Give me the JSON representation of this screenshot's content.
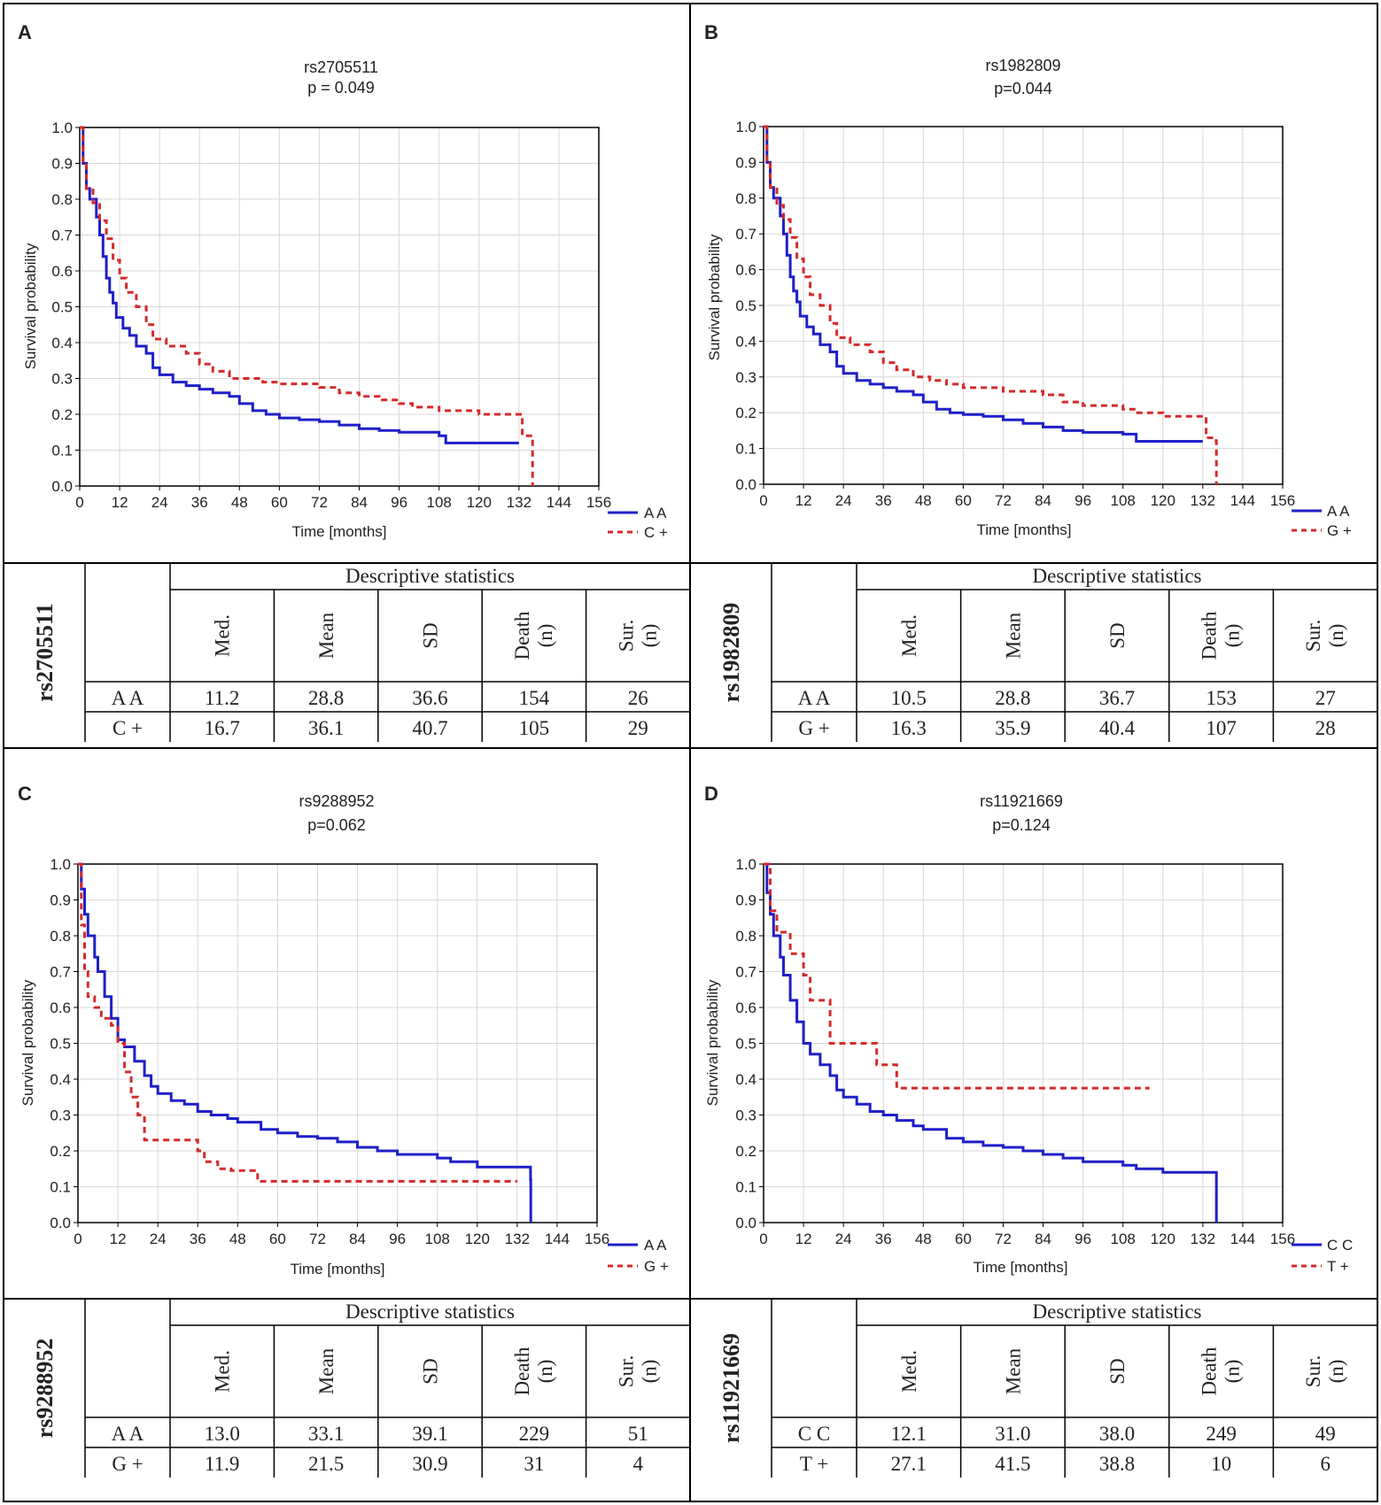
{
  "colors": {
    "series_a": "#1f1fc8",
    "series_b": "#d42a2a",
    "grid": "#d8d8d8",
    "frame": "#000000"
  },
  "y_label": "Survival probability",
  "x_label": "Time [months]",
  "stats_header": "Descriptive statistics",
  "stats_columns": [
    "Med.",
    "Mean",
    "SD",
    "Death\n(n)",
    "Sur.\n(n)"
  ],
  "panels": [
    {
      "letter": "A",
      "snp": "rs2705511",
      "pvalue": "p =  0.049",
      "legend": [
        "A A",
        "C +"
      ],
      "table": [
        {
          "group": "A A",
          "values": [
            "11.2",
            "28.8",
            "36.6",
            "154",
            "26"
          ]
        },
        {
          "group": "C +",
          "values": [
            "16.7",
            "36.1",
            "40.7",
            "105",
            "29"
          ]
        }
      ]
    },
    {
      "letter": "B",
      "snp": "rs1982809",
      "pvalue": "p=0.044",
      "legend": [
        "A A",
        "G +"
      ],
      "table": [
        {
          "group": "A A",
          "values": [
            "10.5",
            "28.8",
            "36.7",
            "153",
            "27"
          ]
        },
        {
          "group": "G +",
          "values": [
            "16.3",
            "35.9",
            "40.4",
            "107",
            "28"
          ]
        }
      ]
    },
    {
      "letter": "C",
      "snp": "rs9288952",
      "pvalue": "p=0.062",
      "legend": [
        "A A",
        "G +"
      ],
      "table": [
        {
          "group": "A A",
          "values": [
            "13.0",
            "33.1",
            "39.1",
            "229",
            "51"
          ]
        },
        {
          "group": "G +",
          "values": [
            "11.9",
            "21.5",
            "30.9",
            "31",
            "4"
          ]
        }
      ]
    },
    {
      "letter": "D",
      "snp": "rs11921669",
      "pvalue": "p=0.124",
      "legend": [
        "C C",
        "T +"
      ],
      "table": [
        {
          "group": "C C",
          "values": [
            "12.1",
            "31.0",
            "38.0",
            "249",
            "49"
          ]
        },
        {
          "group": "T +",
          "values": [
            "27.1",
            "41.5",
            "38.8",
            "10",
            "6"
          ]
        }
      ]
    }
  ],
  "chart_data": [
    {
      "type": "line",
      "panel": "A",
      "title": "rs2705511",
      "subtitle": "p =  0.049",
      "xlabel": "Time [months]",
      "ylabel": "Survival probability",
      "xlim": [
        0,
        156
      ],
      "ylim": [
        0,
        1.0
      ],
      "xticks": [
        0,
        12,
        24,
        36,
        48,
        60,
        72,
        84,
        96,
        108,
        120,
        132,
        144,
        156
      ],
      "yticks": [
        0.0,
        0.1,
        0.2,
        0.3,
        0.4,
        0.5,
        0.6,
        0.7,
        0.8,
        0.9,
        1.0
      ],
      "legend_position": "bottom-right",
      "series": [
        {
          "name": "A A",
          "style": "solid",
          "x": [
            0,
            1,
            2,
            3,
            5,
            6,
            7,
            8,
            9,
            10,
            11,
            13,
            15,
            17,
            20,
            22,
            24,
            28,
            32,
            36,
            40,
            45,
            48,
            52,
            56,
            60,
            66,
            72,
            78,
            84,
            90,
            96,
            108,
            110,
            120,
            132
          ],
          "y": [
            1.0,
            0.9,
            0.83,
            0.8,
            0.75,
            0.7,
            0.64,
            0.58,
            0.54,
            0.51,
            0.47,
            0.44,
            0.42,
            0.39,
            0.37,
            0.33,
            0.31,
            0.29,
            0.28,
            0.27,
            0.26,
            0.25,
            0.23,
            0.21,
            0.2,
            0.19,
            0.185,
            0.18,
            0.17,
            0.16,
            0.155,
            0.15,
            0.14,
            0.12,
            0.12,
            0.12
          ]
        },
        {
          "name": "C +",
          "style": "dashed",
          "x": [
            0,
            1,
            2,
            4,
            6,
            8,
            10,
            12,
            14,
            17,
            20,
            22,
            26,
            32,
            36,
            40,
            45,
            50,
            55,
            60,
            72,
            78,
            84,
            90,
            96,
            100,
            108,
            120,
            132,
            133,
            136,
            136.1
          ],
          "y": [
            1.0,
            0.9,
            0.83,
            0.79,
            0.74,
            0.69,
            0.63,
            0.58,
            0.54,
            0.5,
            0.45,
            0.41,
            0.39,
            0.37,
            0.34,
            0.32,
            0.3,
            0.3,
            0.29,
            0.285,
            0.275,
            0.26,
            0.25,
            0.24,
            0.23,
            0.22,
            0.21,
            0.2,
            0.2,
            0.14,
            0.13,
            0.0
          ]
        }
      ]
    },
    {
      "type": "line",
      "panel": "B",
      "title": "rs1982809",
      "subtitle": "p=0.044",
      "xlabel": "Time [months]",
      "ylabel": "Survival probability",
      "xlim": [
        0,
        156
      ],
      "ylim": [
        0,
        1.0
      ],
      "xticks": [
        0,
        12,
        24,
        36,
        48,
        60,
        72,
        84,
        96,
        108,
        120,
        132,
        144,
        156
      ],
      "yticks": [
        0.0,
        0.1,
        0.2,
        0.3,
        0.4,
        0.5,
        0.6,
        0.7,
        0.8,
        0.9,
        1.0
      ],
      "legend_position": "bottom-right",
      "series": [
        {
          "name": "A A",
          "style": "solid",
          "x": [
            0,
            1,
            2,
            3,
            5,
            6,
            7,
            8,
            9,
            10,
            11,
            13,
            15,
            17,
            20,
            22,
            24,
            28,
            32,
            36,
            40,
            45,
            48,
            52,
            56,
            60,
            66,
            72,
            78,
            84,
            90,
            96,
            108,
            112,
            120,
            132
          ],
          "y": [
            1.0,
            0.9,
            0.83,
            0.8,
            0.75,
            0.7,
            0.64,
            0.58,
            0.54,
            0.51,
            0.47,
            0.44,
            0.42,
            0.39,
            0.37,
            0.33,
            0.31,
            0.29,
            0.28,
            0.27,
            0.26,
            0.25,
            0.23,
            0.21,
            0.2,
            0.195,
            0.19,
            0.18,
            0.17,
            0.16,
            0.15,
            0.145,
            0.14,
            0.12,
            0.12,
            0.12
          ]
        },
        {
          "name": "G +",
          "style": "dashed",
          "x": [
            0,
            1,
            2,
            4,
            6,
            8,
            10,
            12,
            14,
            17,
            20,
            22,
            26,
            32,
            36,
            40,
            45,
            50,
            55,
            60,
            72,
            84,
            90,
            96,
            108,
            112,
            120,
            132,
            133,
            136,
            136.1
          ],
          "y": [
            1.0,
            0.9,
            0.83,
            0.78,
            0.74,
            0.69,
            0.63,
            0.58,
            0.53,
            0.5,
            0.45,
            0.41,
            0.39,
            0.37,
            0.34,
            0.32,
            0.3,
            0.29,
            0.28,
            0.27,
            0.26,
            0.25,
            0.23,
            0.22,
            0.21,
            0.2,
            0.19,
            0.19,
            0.13,
            0.12,
            0.0
          ]
        }
      ]
    },
    {
      "type": "line",
      "panel": "C",
      "title": "rs9288952",
      "subtitle": "p=0.062",
      "xlabel": "Time [months]",
      "ylabel": "Survival probability",
      "xlim": [
        0,
        156
      ],
      "ylim": [
        0,
        1.0
      ],
      "xticks": [
        0,
        12,
        24,
        36,
        48,
        60,
        72,
        84,
        96,
        108,
        120,
        132,
        144,
        156
      ],
      "yticks": [
        0.0,
        0.1,
        0.2,
        0.3,
        0.4,
        0.5,
        0.6,
        0.7,
        0.8,
        0.9,
        1.0
      ],
      "legend_position": "bottom-right",
      "series": [
        {
          "name": "A A",
          "style": "solid",
          "x": [
            0,
            1,
            2,
            3,
            5,
            6,
            8,
            10,
            12,
            14,
            17,
            20,
            22,
            24,
            28,
            32,
            36,
            40,
            45,
            48,
            55,
            60,
            66,
            72,
            78,
            84,
            90,
            96,
            108,
            112,
            120,
            132,
            136,
            136.1
          ],
          "y": [
            1.0,
            0.93,
            0.86,
            0.8,
            0.74,
            0.7,
            0.63,
            0.57,
            0.51,
            0.49,
            0.45,
            0.41,
            0.38,
            0.36,
            0.34,
            0.33,
            0.31,
            0.3,
            0.29,
            0.28,
            0.26,
            0.25,
            0.24,
            0.235,
            0.225,
            0.21,
            0.2,
            0.19,
            0.18,
            0.17,
            0.155,
            0.155,
            0.12,
            0.0
          ]
        },
        {
          "name": "G +",
          "style": "dashed",
          "x": [
            0,
            1,
            2,
            3,
            5,
            7,
            10,
            12,
            14,
            16,
            18,
            20,
            36,
            38,
            42,
            46,
            54,
            132
          ],
          "y": [
            1.0,
            0.83,
            0.7,
            0.63,
            0.6,
            0.57,
            0.55,
            0.5,
            0.42,
            0.35,
            0.3,
            0.23,
            0.2,
            0.17,
            0.15,
            0.145,
            0.115,
            0.115
          ]
        }
      ]
    },
    {
      "type": "line",
      "panel": "D",
      "title": "rs11921669",
      "subtitle": "p=0.124",
      "xlabel": "Time [months]",
      "ylabel": "Survival probability",
      "xlim": [
        0,
        156
      ],
      "ylim": [
        0,
        1.0
      ],
      "xticks": [
        0,
        12,
        24,
        36,
        48,
        60,
        72,
        84,
        96,
        108,
        120,
        132,
        144,
        156
      ],
      "yticks": [
        0.0,
        0.1,
        0.2,
        0.3,
        0.4,
        0.5,
        0.6,
        0.7,
        0.8,
        0.9,
        1.0
      ],
      "legend_position": "bottom-right",
      "series": [
        {
          "name": "C C",
          "style": "solid",
          "x": [
            0,
            1,
            2,
            3,
            5,
            6,
            8,
            10,
            12,
            14,
            17,
            20,
            22,
            24,
            28,
            32,
            36,
            40,
            45,
            48,
            55,
            60,
            66,
            72,
            78,
            84,
            90,
            96,
            108,
            112,
            120,
            132,
            136,
            136.1
          ],
          "y": [
            1.0,
            0.92,
            0.86,
            0.8,
            0.74,
            0.69,
            0.62,
            0.56,
            0.5,
            0.47,
            0.44,
            0.41,
            0.37,
            0.35,
            0.33,
            0.31,
            0.3,
            0.285,
            0.27,
            0.26,
            0.235,
            0.225,
            0.215,
            0.21,
            0.2,
            0.19,
            0.18,
            0.17,
            0.16,
            0.15,
            0.14,
            0.14,
            0.14,
            0.0
          ]
        },
        {
          "name": "T +",
          "style": "dashed",
          "x": [
            0,
            2,
            4,
            8,
            12,
            14,
            16,
            20,
            34,
            36,
            40,
            116
          ],
          "y": [
            1.0,
            0.87,
            0.81,
            0.75,
            0.69,
            0.62,
            0.62,
            0.5,
            0.44,
            0.44,
            0.375,
            0.375
          ]
        }
      ]
    }
  ]
}
